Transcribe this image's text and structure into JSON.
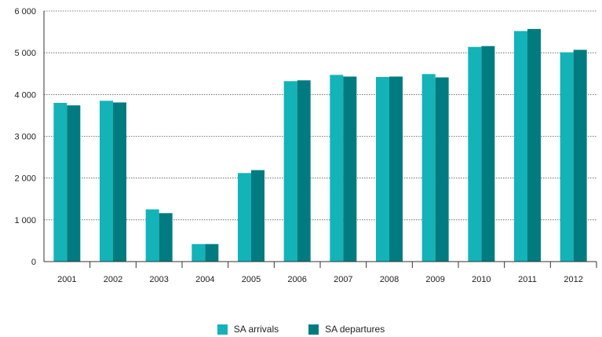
{
  "chart_data": {
    "type": "bar",
    "categories": [
      "2001",
      "2002",
      "2003",
      "2004",
      "2005",
      "2006",
      "2007",
      "2008",
      "2009",
      "2010",
      "2011",
      "2012"
    ],
    "series": [
      {
        "name": "SA arrivals",
        "color": "#13b3b8",
        "values": [
          3800,
          3850,
          1250,
          420,
          2120,
          4320,
          4470,
          4420,
          4490,
          5140,
          5520,
          5010
        ]
      },
      {
        "name": "SA departures",
        "color": "#007c80",
        "values": [
          3740,
          3810,
          1160,
          420,
          2190,
          4340,
          4430,
          4430,
          4410,
          5160,
          5570,
          5070
        ]
      }
    ],
    "y_ticks": [
      "0",
      "1 000",
      "2 000",
      "3 000",
      "4 000",
      "5 000",
      "6 000"
    ],
    "ylim": [
      0,
      6000
    ],
    "grid": true,
    "legend_position": "bottom-center"
  }
}
